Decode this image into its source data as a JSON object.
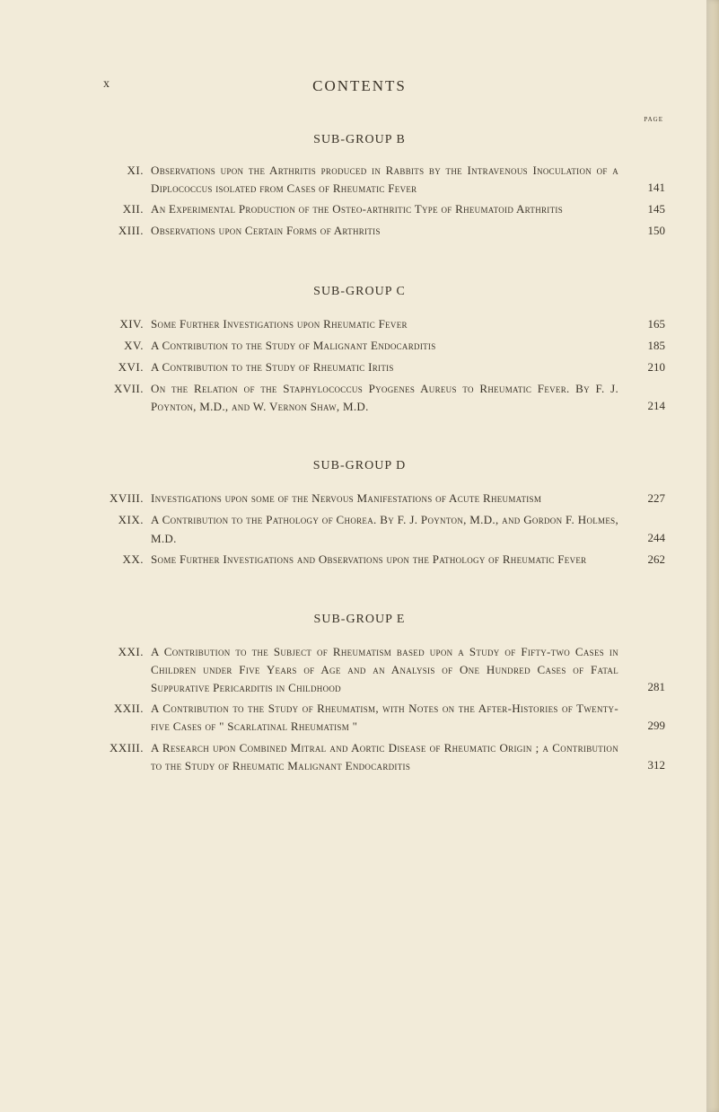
{
  "header": {
    "pageNumberMarker": "x",
    "title": "CONTENTS",
    "pageLabel": "page"
  },
  "subgroups": [
    {
      "title": "SUB-GROUP B",
      "isFirst": true,
      "entries": [
        {
          "roman": "XI.",
          "text": "Observations upon the Arthritis produced in Rabbits by the Intravenous Inoculation of a Diplococcus isolated from Cases of Rheumatic Fever",
          "page": "141"
        },
        {
          "roman": "XII.",
          "text": "An Experimental Production of the Osteo-arthritic Type of Rheumatoid Arthritis",
          "page": "145"
        },
        {
          "roman": "XIII.",
          "text": "Observations upon Certain Forms of Arthritis",
          "page": "150"
        }
      ]
    },
    {
      "title": "SUB-GROUP C",
      "isFirst": false,
      "entries": [
        {
          "roman": "XIV.",
          "text": "Some Further Investigations upon Rheumatic Fever",
          "page": "165"
        },
        {
          "roman": "XV.",
          "text": "A Contribution to the Study of Malignant Endocarditis",
          "page": "185"
        },
        {
          "roman": "XVI.",
          "text": "A Contribution to the Study of Rheumatic Iritis",
          "page": "210"
        },
        {
          "roman": "XVII.",
          "text": "On the Relation of the Staphylococcus Pyogenes Aureus to Rheumatic Fever. By F. J. Poynton, M.D., and W. Vernon Shaw, M.D.",
          "page": "214"
        }
      ]
    },
    {
      "title": "SUB-GROUP D",
      "isFirst": false,
      "entries": [
        {
          "roman": "XVIII.",
          "text": "Investigations upon some of the Nervous Manifestations of Acute Rheumatism",
          "page": "227"
        },
        {
          "roman": "XIX.",
          "text": "A Contribution to the Pathology of Chorea. By F. J. Poynton, M.D., and Gordon F. Holmes, M.D.",
          "page": "244"
        },
        {
          "roman": "XX.",
          "text": "Some Further Investigations and Observations upon the Pathology of Rheumatic Fever",
          "page": "262"
        }
      ]
    },
    {
      "title": "SUB-GROUP E",
      "isFirst": false,
      "entries": [
        {
          "roman": "XXI.",
          "text": "A Contribution to the Subject of Rheumatism based upon a Study of Fifty-two Cases in Children under Five Years of Age and an Analysis of One Hundred Cases of Fatal Suppurative Pericarditis in Childhood",
          "page": "281"
        },
        {
          "roman": "XXII.",
          "text": "A Contribution to the Study of Rheumatism, with Notes on the After-Histories of Twenty-five Cases of \" Scarlatinal Rheumatism \"",
          "page": "299"
        },
        {
          "roman": "XXIII.",
          "text": "A Research upon Combined Mitral and Aortic Disease of Rheumatic Origin ; a Contribution to the Study of Rheumatic Malignant Endocarditis",
          "page": "312"
        }
      ]
    }
  ],
  "styling": {
    "backgroundColor": "#f2ebd9",
    "textColor": "#3a3328",
    "pageWidth": 801,
    "pageHeight": 1238,
    "titleFontSize": 17,
    "subgroupFontSize": 14,
    "bodyFontSize": 13
  }
}
